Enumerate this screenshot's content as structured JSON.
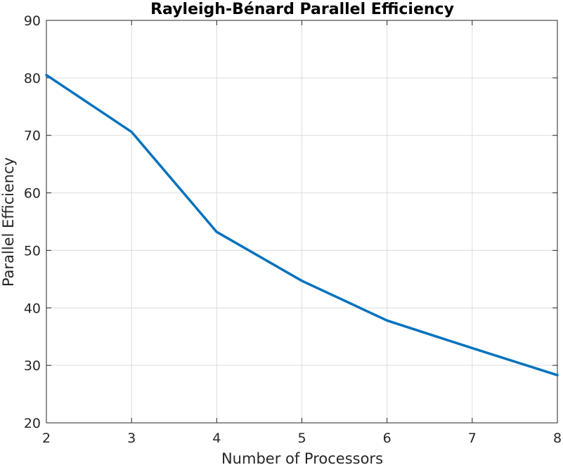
{
  "chart_data": {
    "type": "line",
    "title": "Rayleigh-Bénard Parallel Efficiency",
    "xlabel": "Number of Processors",
    "ylabel": "Parallel Efficiency",
    "xlim": [
      2,
      8
    ],
    "ylim": [
      20,
      90
    ],
    "xticks": [
      2,
      3,
      4,
      5,
      6,
      7,
      8
    ],
    "yticks": [
      20,
      30,
      40,
      50,
      60,
      70,
      80,
      90
    ],
    "grid": true,
    "series": [
      {
        "color": "#0072bd",
        "x": [
          2,
          3,
          4,
          5,
          6,
          7,
          8
        ],
        "values": [
          80.5,
          70.6,
          53.2,
          44.7,
          37.8,
          33.0,
          28.3
        ]
      }
    ]
  }
}
